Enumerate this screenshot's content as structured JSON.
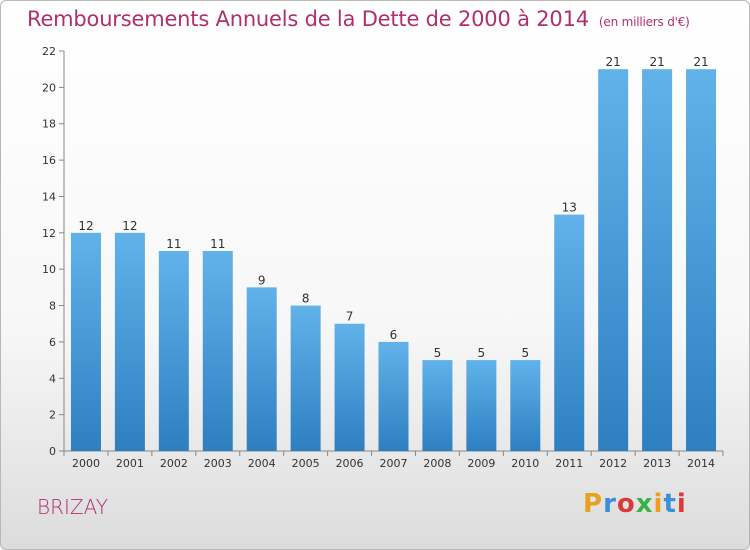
{
  "header": {
    "title": "Remboursements Annuels de la Dette de 2000 à 2014",
    "unit": "(en milliers d'€)"
  },
  "footer": {
    "commune": "BRIZAY",
    "logo": "Proxiti",
    "logo_colors": [
      "#e8a020",
      "#3a8fd6",
      "#d93a3a",
      "#3ab24a",
      "#e8a020",
      "#3a8fd6",
      "#d93a3a"
    ]
  },
  "chart_data": {
    "type": "bar",
    "title": "Remboursements Annuels de la Dette de 2000 à 2014",
    "unit": "(en milliers d'€)",
    "categories": [
      "2000",
      "2001",
      "2002",
      "2003",
      "2004",
      "2005",
      "2006",
      "2007",
      "2008",
      "2009",
      "2010",
      "2011",
      "2012",
      "2013",
      "2014"
    ],
    "values": [
      12,
      12,
      11,
      11,
      9,
      8,
      7,
      6,
      5,
      5,
      5,
      13,
      21,
      21,
      21
    ],
    "ylim": [
      0,
      22
    ],
    "yticks": [
      0,
      2,
      4,
      6,
      8,
      10,
      12,
      14,
      16,
      18,
      20,
      22
    ],
    "grid": false,
    "bar_color_top": "#62b2ea",
    "bar_color_bottom": "#2d7fc0"
  }
}
